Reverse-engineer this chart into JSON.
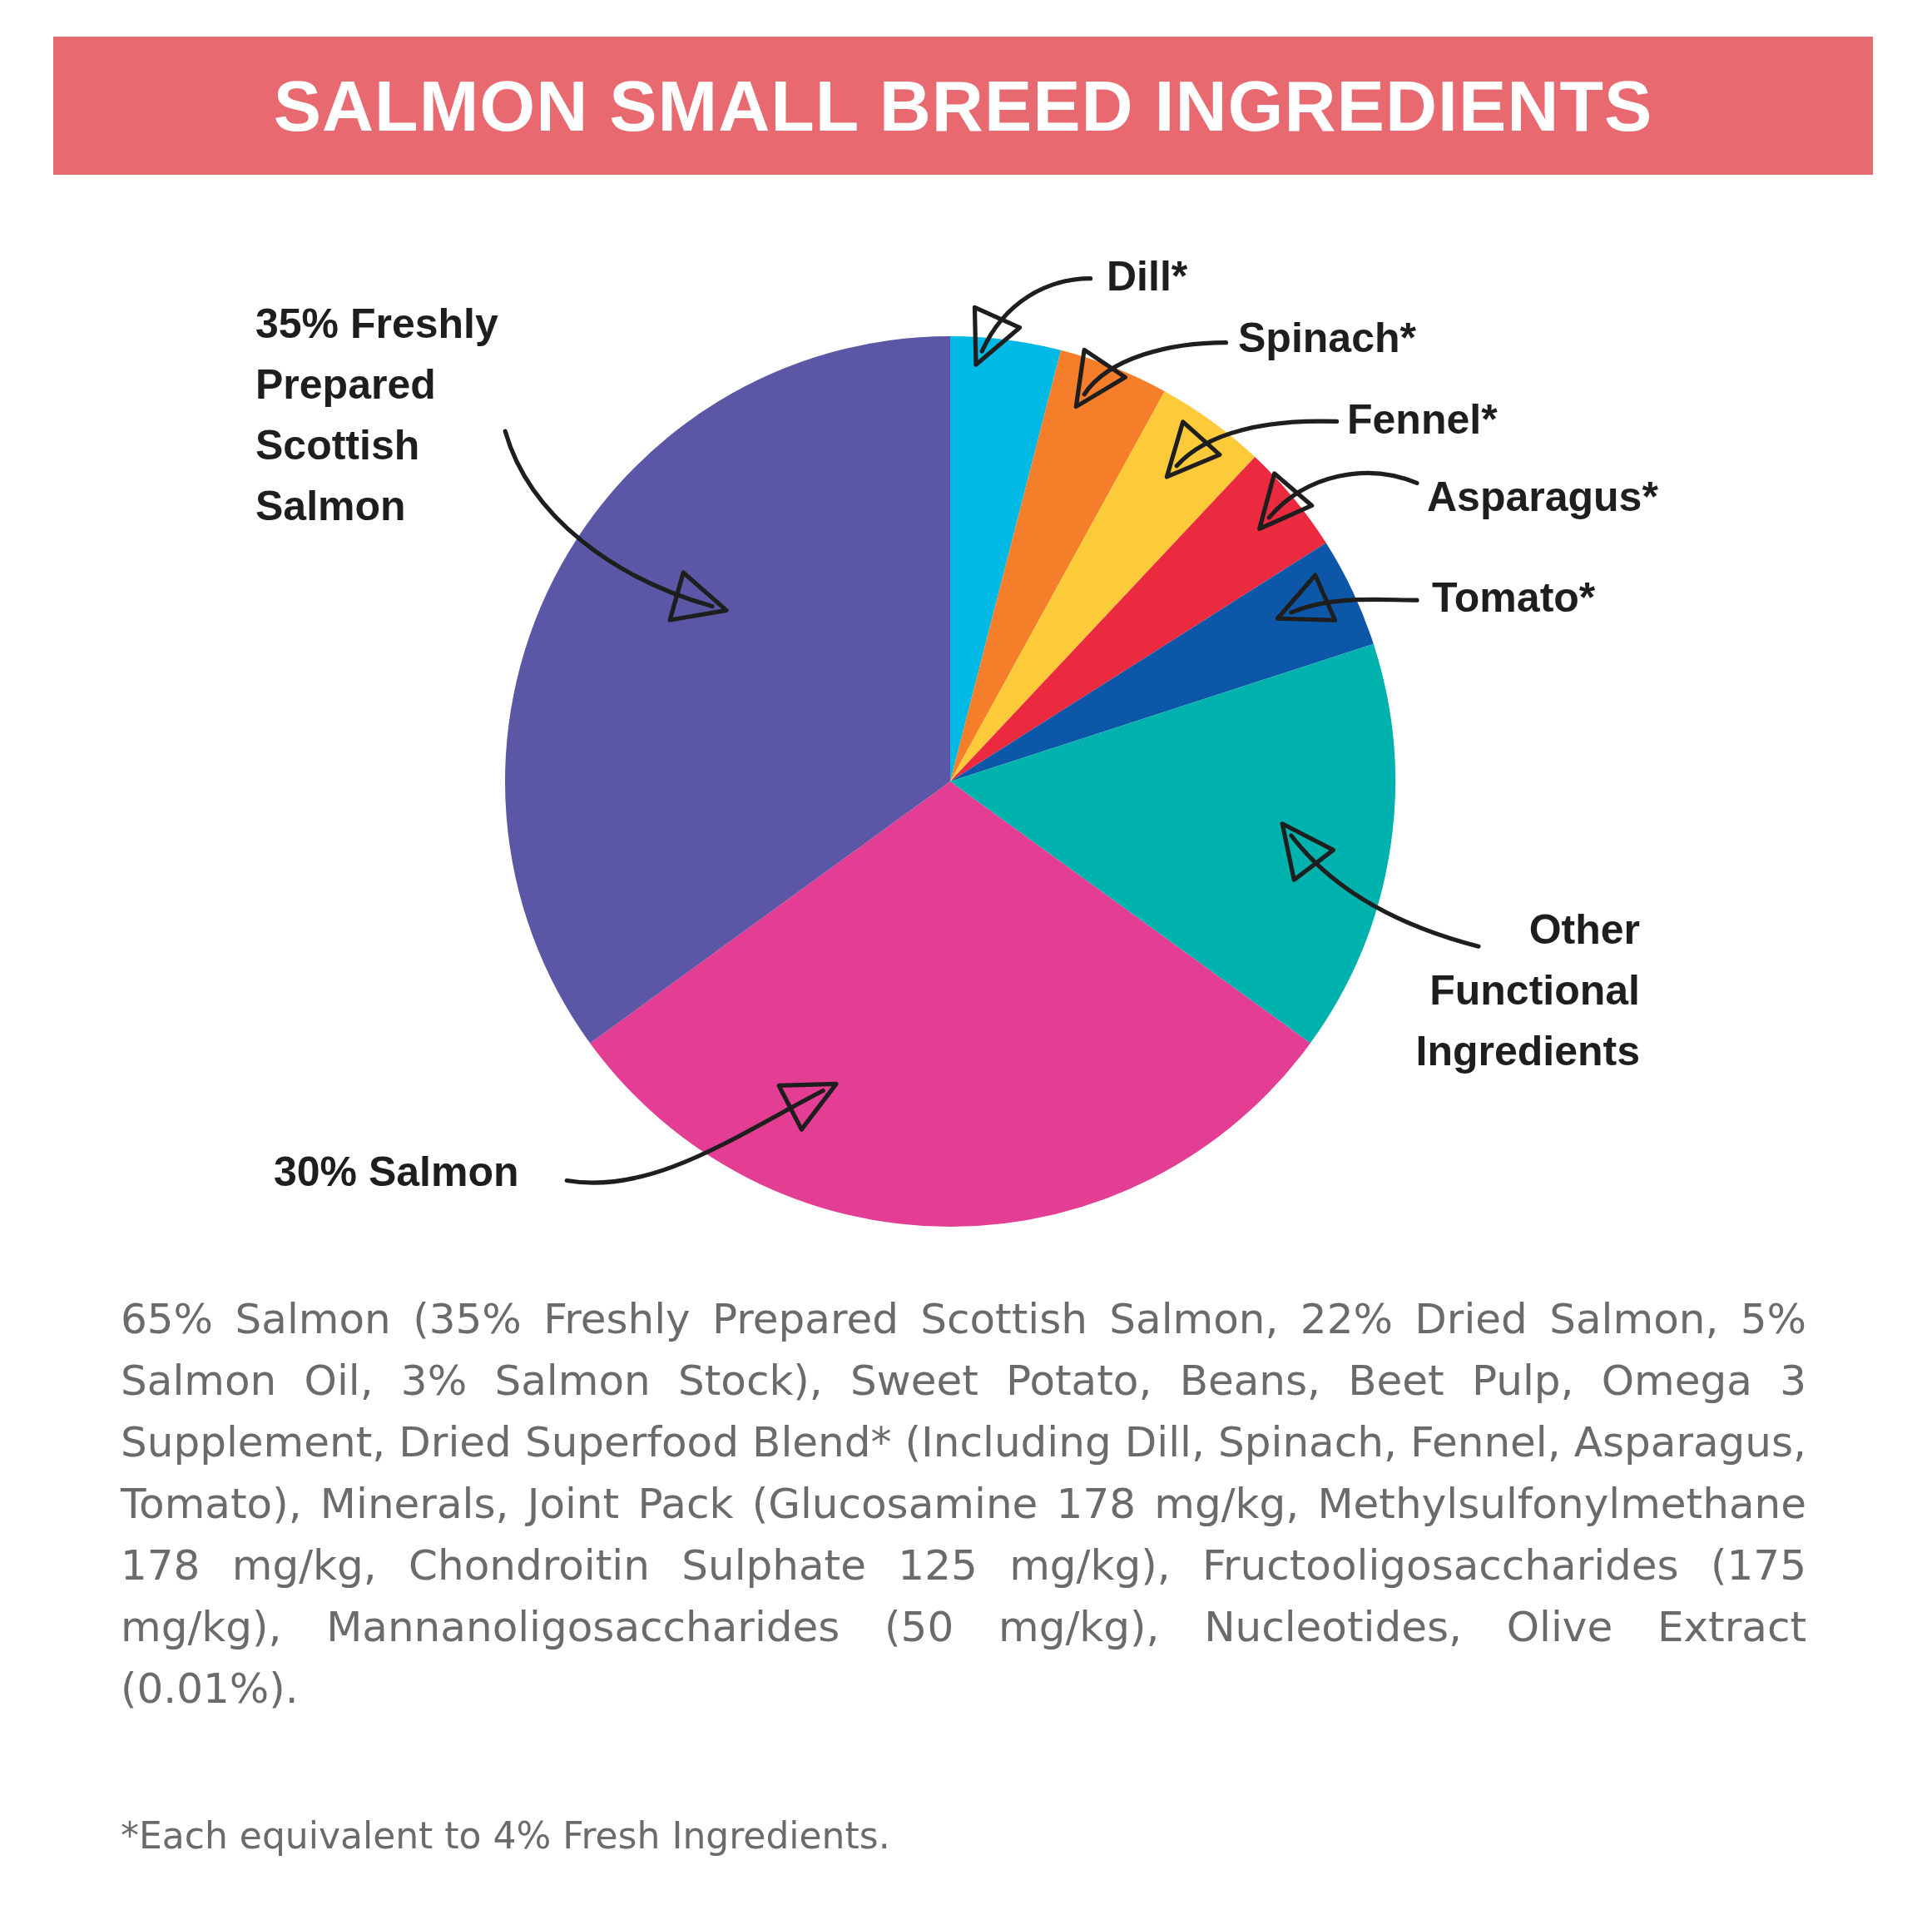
{
  "chart_data": {
    "type": "pie",
    "title": "SALMON SMALL BREED INGREDIENTS",
    "categories": [
      "Dill*",
      "Spinach*",
      "Fennel*",
      "Asparagus*",
      "Tomato*",
      "Other Functional Ingredients",
      "30% Salmon",
      "35% Freshly Prepared Scottish Salmon"
    ],
    "values": [
      4,
      4,
      4,
      4,
      4,
      15,
      30,
      35
    ],
    "colors": [
      "#00b9e4",
      "#f47e2a",
      "#fdcb39",
      "#ec2a3f",
      "#0c57a7",
      "#00b2ae",
      "#e33d94",
      "#5b56a5"
    ],
    "legend": false,
    "annotations": [
      "65% Salmon (35% Freshly Prepared Scottish Salmon, 22% Dried Salmon, 5% Salmon Oil, 3% Salmon Stock), Sweet Potato, Beans, Beet Pulp, Omega 3 Supplement, Dried Superfood Blend* (Including Dill, Spinach, Fennel, Asparagus, Tomato), Minerals, Joint Pack (Glucosamine 178 mg/kg, Methylsulfonylmethane 178 mg/kg, Chondroitin Sulphate 125 mg/kg), Fructooligosaccharides (175 mg/kg), Mannanoligosaccharides (50 mg/kg), Nucleotides, Olive Extract (0.01%).",
      "*Each equivalent to 4% Fresh Ingredients."
    ]
  }
}
